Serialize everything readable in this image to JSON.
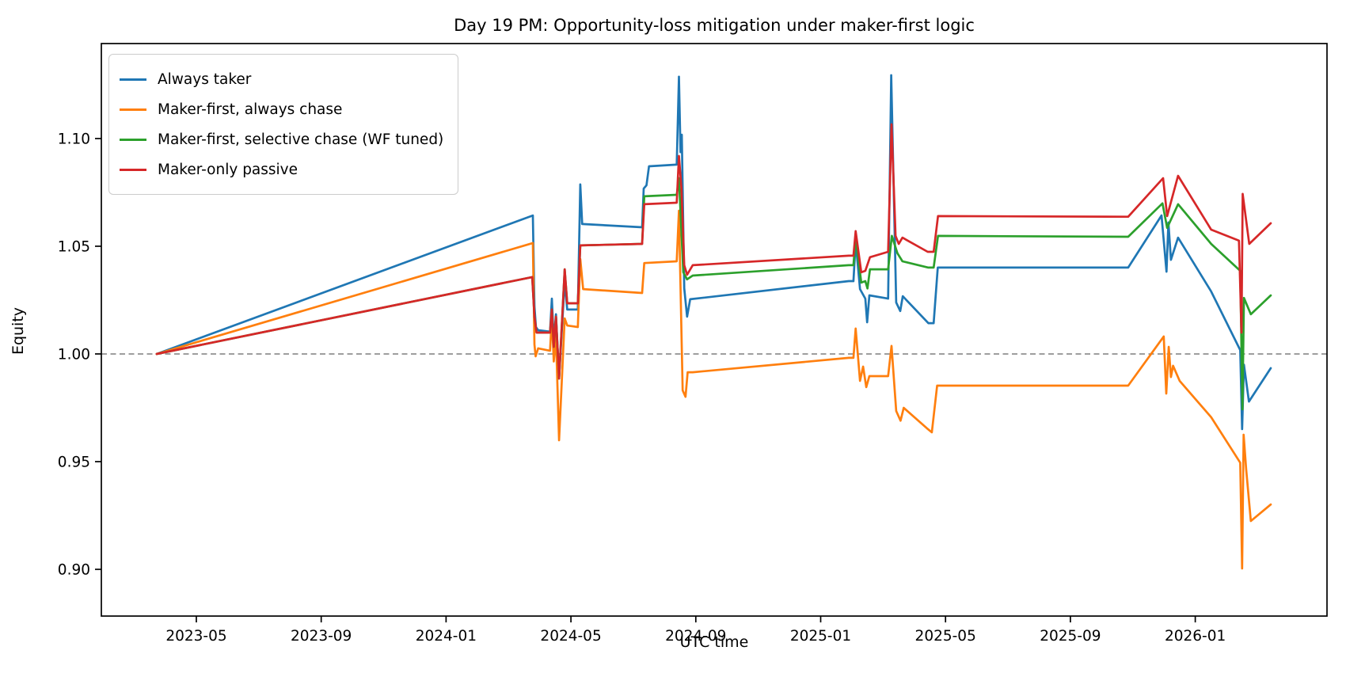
{
  "title": "Day 19 PM: Opportunity-loss mitigation under maker-first logic",
  "axes": {
    "x_label": "UTC time",
    "y_label": "Equity"
  },
  "legend": {
    "items": [
      {
        "label": "Always taker",
        "color": "#1f77b4"
      },
      {
        "label": "Maker-first, always chase",
        "color": "#ff7f0e"
      },
      {
        "label": "Maker-first, selective chase (WF tuned)",
        "color": "#2ca02c"
      },
      {
        "label": "Maker-only passive",
        "color": "#d62728"
      }
    ]
  },
  "chart_data": {
    "type": "line",
    "title": "Day 19 PM: Opportunity-loss mitigation under maker-first logic",
    "xlabel": "UTC time",
    "ylabel": "Equity",
    "x_unit": "months_since_2023-01-01",
    "xlim": [
      0.957,
      40.22
    ],
    "ylim": [
      0.8783,
      1.1441
    ],
    "grid": false,
    "legend_position": "upper left",
    "baseline": {
      "value": 1.0,
      "style": "dashed",
      "color": "#7f7f7f"
    },
    "x_ticks": [
      {
        "m": 4,
        "label": "2023-05"
      },
      {
        "m": 8,
        "label": "2023-09"
      },
      {
        "m": 12,
        "label": "2024-01"
      },
      {
        "m": 16,
        "label": "2024-05"
      },
      {
        "m": 20,
        "label": "2024-09"
      },
      {
        "m": 24,
        "label": "2025-01"
      },
      {
        "m": 28,
        "label": "2025-05"
      },
      {
        "m": 32,
        "label": "2025-09"
      },
      {
        "m": 36,
        "label": "2026-01"
      }
    ],
    "y_ticks": [
      {
        "v": 0.9,
        "label": "0.90"
      },
      {
        "v": 0.95,
        "label": "0.95"
      },
      {
        "v": 1.0,
        "label": "1.00"
      },
      {
        "v": 1.05,
        "label": "1.05"
      },
      {
        "v": 1.1,
        "label": "1.10"
      }
    ],
    "series": [
      {
        "name": "Always taker",
        "color": "#1f77b4",
        "points": [
          [
            2.73,
            1.0
          ],
          [
            14.78,
            1.0643
          ],
          [
            14.83,
            1.0221
          ],
          [
            14.88,
            1.0125
          ],
          [
            14.95,
            1.011
          ],
          [
            15.33,
            1.0103
          ],
          [
            15.39,
            1.0257
          ],
          [
            15.45,
            1.0059
          ],
          [
            15.52,
            1.0184
          ],
          [
            15.62,
            0.9886
          ],
          [
            15.8,
            1.0338
          ],
          [
            15.88,
            1.0206
          ],
          [
            16.22,
            1.0206
          ],
          [
            16.3,
            1.0787
          ],
          [
            16.36,
            1.0603
          ],
          [
            18.28,
            1.0588
          ],
          [
            18.33,
            1.0768
          ],
          [
            18.42,
            1.0783
          ],
          [
            18.5,
            1.0871
          ],
          [
            19.39,
            1.0879
          ],
          [
            19.46,
            1.1287
          ],
          [
            19.51,
            1.0937
          ],
          [
            19.55,
            1.1018
          ],
          [
            19.63,
            1.0305
          ],
          [
            19.72,
            1.0173
          ],
          [
            19.82,
            1.0254
          ],
          [
            24.9,
            1.0338
          ],
          [
            25.05,
            1.0338
          ],
          [
            25.12,
            1.0522
          ],
          [
            25.26,
            1.0301
          ],
          [
            25.43,
            1.0257
          ],
          [
            25.49,
            1.0147
          ],
          [
            25.56,
            1.0272
          ],
          [
            26.16,
            1.0257
          ],
          [
            26.26,
            1.1294
          ],
          [
            26.42,
            1.0239
          ],
          [
            26.55,
            1.0199
          ],
          [
            26.63,
            1.0268
          ],
          [
            27.45,
            1.0143
          ],
          [
            27.62,
            1.0143
          ],
          [
            27.75,
            1.0401
          ],
          [
            33.85,
            1.0401
          ],
          [
            34.92,
            1.0643
          ],
          [
            35.08,
            1.0382
          ],
          [
            35.14,
            1.061
          ],
          [
            35.22,
            1.0437
          ],
          [
            35.45,
            1.054
          ],
          [
            36.51,
            1.029
          ],
          [
            37.44,
            1.0018
          ],
          [
            37.5,
            0.9651
          ],
          [
            37.56,
            0.995
          ],
          [
            37.72,
            0.9779
          ],
          [
            38.42,
            0.9934
          ]
        ]
      },
      {
        "name": "Maker-first, always chase",
        "color": "#ff7f0e",
        "points": [
          [
            2.73,
            1.0
          ],
          [
            14.78,
            1.0515
          ],
          [
            14.83,
            1.0044
          ],
          [
            14.87,
            0.9989
          ],
          [
            14.95,
            1.0026
          ],
          [
            15.33,
            1.0015
          ],
          [
            15.39,
            1.0173
          ],
          [
            15.45,
            0.9965
          ],
          [
            15.52,
            1.0083
          ],
          [
            15.62,
            0.9599
          ],
          [
            15.8,
            1.0165
          ],
          [
            15.88,
            1.0132
          ],
          [
            16.22,
            1.0125
          ],
          [
            16.3,
            1.0441
          ],
          [
            16.39,
            1.0301
          ],
          [
            18.28,
            1.0283
          ],
          [
            18.35,
            1.0422
          ],
          [
            19.39,
            1.043
          ],
          [
            19.46,
            1.0665
          ],
          [
            19.58,
            0.9831
          ],
          [
            19.67,
            0.9801
          ],
          [
            19.74,
            0.9915
          ],
          [
            19.9,
            0.9915
          ],
          [
            24.9,
            0.9982
          ],
          [
            25.05,
            0.9982
          ],
          [
            25.12,
            1.0118
          ],
          [
            25.26,
            0.9875
          ],
          [
            25.36,
            0.9941
          ],
          [
            25.46,
            0.9846
          ],
          [
            25.56,
            0.9897
          ],
          [
            26.16,
            0.9897
          ],
          [
            26.27,
            1.0037
          ],
          [
            26.42,
            0.9735
          ],
          [
            26.56,
            0.969
          ],
          [
            26.66,
            0.975
          ],
          [
            27.4,
            0.9655
          ],
          [
            27.56,
            0.9636
          ],
          [
            27.73,
            0.9853
          ],
          [
            33.85,
            0.9853
          ],
          [
            34.99,
            1.0081
          ],
          [
            35.07,
            0.9816
          ],
          [
            35.15,
            1.0033
          ],
          [
            35.22,
            0.9893
          ],
          [
            35.29,
            0.9945
          ],
          [
            35.5,
            0.9875
          ],
          [
            36.51,
            0.9706
          ],
          [
            37.44,
            0.9495
          ],
          [
            37.5,
            0.9004
          ],
          [
            37.55,
            0.9625
          ],
          [
            37.63,
            0.9465
          ],
          [
            37.78,
            0.9224
          ],
          [
            38.42,
            0.9301
          ]
        ]
      },
      {
        "name": "Maker-first, selective chase (WF tuned)",
        "color": "#2ca02c",
        "points": [
          [
            2.73,
            1.0
          ],
          [
            14.76,
            1.0357
          ],
          [
            14.83,
            1.0173
          ],
          [
            14.9,
            1.0099
          ],
          [
            15.33,
            1.0099
          ],
          [
            15.39,
            1.0206
          ],
          [
            15.45,
            1.0033
          ],
          [
            15.52,
            1.0173
          ],
          [
            15.62,
            0.9886
          ],
          [
            15.8,
            1.0393
          ],
          [
            15.88,
            1.0235
          ],
          [
            16.22,
            1.0235
          ],
          [
            16.3,
            1.0504
          ],
          [
            18.28,
            1.0511
          ],
          [
            18.35,
            1.0732
          ],
          [
            19.39,
            1.0739
          ],
          [
            19.46,
            1.0816
          ],
          [
            19.6,
            1.0379
          ],
          [
            19.72,
            1.0346
          ],
          [
            19.9,
            1.0364
          ],
          [
            24.9,
            1.0412
          ],
          [
            25.05,
            1.0412
          ],
          [
            25.12,
            1.054
          ],
          [
            25.3,
            1.0331
          ],
          [
            25.43,
            1.0338
          ],
          [
            25.5,
            1.0304
          ],
          [
            25.58,
            1.0393
          ],
          [
            26.16,
            1.0393
          ],
          [
            26.28,
            1.0548
          ],
          [
            26.46,
            1.0467
          ],
          [
            26.62,
            1.043
          ],
          [
            27.45,
            1.0401
          ],
          [
            27.62,
            1.0401
          ],
          [
            27.76,
            1.0548
          ],
          [
            33.85,
            1.0544
          ],
          [
            34.95,
            1.0699
          ],
          [
            35.1,
            1.0585
          ],
          [
            35.45,
            1.0695
          ],
          [
            36.51,
            1.0511
          ],
          [
            37.44,
            1.0386
          ],
          [
            37.51,
            0.9743
          ],
          [
            37.56,
            1.026
          ],
          [
            37.78,
            1.0184
          ],
          [
            38.42,
            1.0272
          ]
        ]
      },
      {
        "name": "Maker-only passive",
        "color": "#d62728",
        "points": [
          [
            2.73,
            1.0
          ],
          [
            14.76,
            1.0357
          ],
          [
            14.83,
            1.0173
          ],
          [
            14.9,
            1.0099
          ],
          [
            15.33,
            1.0099
          ],
          [
            15.39,
            1.0206
          ],
          [
            15.45,
            1.0033
          ],
          [
            15.52,
            1.0173
          ],
          [
            15.62,
            0.9886
          ],
          [
            15.8,
            1.0393
          ],
          [
            15.88,
            1.0235
          ],
          [
            16.22,
            1.0235
          ],
          [
            16.3,
            1.0504
          ],
          [
            18.28,
            1.0511
          ],
          [
            18.35,
            1.0695
          ],
          [
            19.39,
            1.0702
          ],
          [
            19.46,
            1.0919
          ],
          [
            19.54,
            1.0768
          ],
          [
            19.63,
            1.0412
          ],
          [
            19.72,
            1.0368
          ],
          [
            19.9,
            1.0412
          ],
          [
            24.9,
            1.0456
          ],
          [
            25.05,
            1.0456
          ],
          [
            25.12,
            1.057
          ],
          [
            25.3,
            1.0379
          ],
          [
            25.43,
            1.0386
          ],
          [
            25.58,
            1.0449
          ],
          [
            26.16,
            1.0474
          ],
          [
            26.27,
            1.1066
          ],
          [
            26.4,
            1.0548
          ],
          [
            26.5,
            1.0511
          ],
          [
            26.62,
            1.054
          ],
          [
            27.43,
            1.0474
          ],
          [
            27.62,
            1.0474
          ],
          [
            27.76,
            1.064
          ],
          [
            33.85,
            1.0637
          ],
          [
            34.97,
            1.0816
          ],
          [
            35.1,
            1.064
          ],
          [
            35.45,
            1.0827
          ],
          [
            36.51,
            1.0577
          ],
          [
            37.4,
            1.0526
          ],
          [
            37.48,
            1.0099
          ],
          [
            37.52,
            1.0743
          ],
          [
            37.73,
            1.0511
          ],
          [
            38.42,
            1.0607
          ]
        ]
      }
    ]
  }
}
